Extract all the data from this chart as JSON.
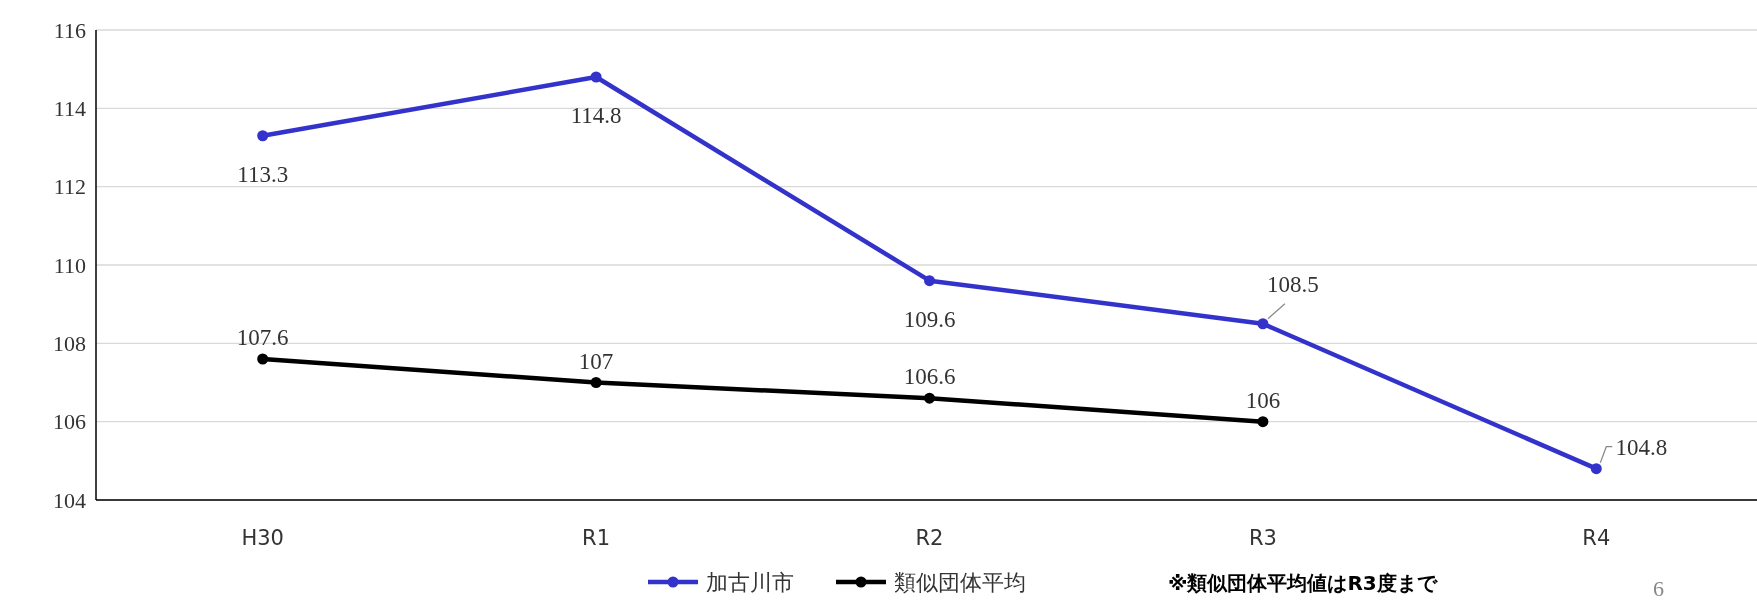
{
  "chart_data": {
    "type": "line",
    "categories": [
      "H30",
      "R1",
      "R2",
      "R3",
      "R4"
    ],
    "series": [
      {
        "name": "加古川市",
        "color": "#3333cc",
        "values": [
          113.3,
          114.8,
          109.6,
          108.5,
          104.8
        ]
      },
      {
        "name": "類似団体平均",
        "color": "#000000",
        "values": [
          107.6,
          107,
          106.6,
          106,
          null
        ]
      }
    ],
    "ylim": [
      104,
      116
    ],
    "yticks": [
      104,
      106,
      108,
      110,
      112,
      114,
      116
    ],
    "grid": "y",
    "legend": "bottom",
    "marker": "circle",
    "line_style": "solid",
    "data_labels": true,
    "annotations": [
      "※類似団体平均値はR3度まで",
      "6"
    ]
  }
}
